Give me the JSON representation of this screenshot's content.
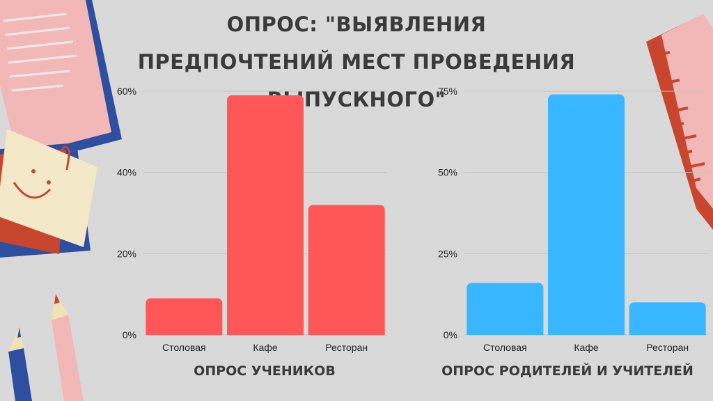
{
  "title": "ОПРОС: \"ВЫЯВЛЕНИЯ ПРЕДПОЧТЕНИЙ МЕСТ ПРОВЕДЕНИЯ ВЫПУСКНОГО\"",
  "chart_data": [
    {
      "type": "bar",
      "caption": "ОПРОС УЧЕНИКОВ",
      "categories": [
        "Столовая",
        "Кафе",
        "Ресторан"
      ],
      "values": [
        9,
        59,
        32
      ],
      "value_unit": "%",
      "yticks": [
        "0%",
        "20%",
        "40%",
        "60%"
      ],
      "ylim": [
        0,
        60
      ],
      "grid": true,
      "color": "#ff5757"
    },
    {
      "type": "bar",
      "caption": "ОПРОС РОДИТЕЛЕЙ И УЧИТЕЛЕЙ",
      "categories": [
        "Столовая",
        "Кафе",
        "Ресторан"
      ],
      "values": [
        16,
        74,
        10
      ],
      "value_unit": "%",
      "yticks": [
        "0%",
        "25%",
        "50%",
        "75%"
      ],
      "ylim": [
        0,
        75
      ],
      "grid": true,
      "color": "#38b6ff"
    }
  ]
}
